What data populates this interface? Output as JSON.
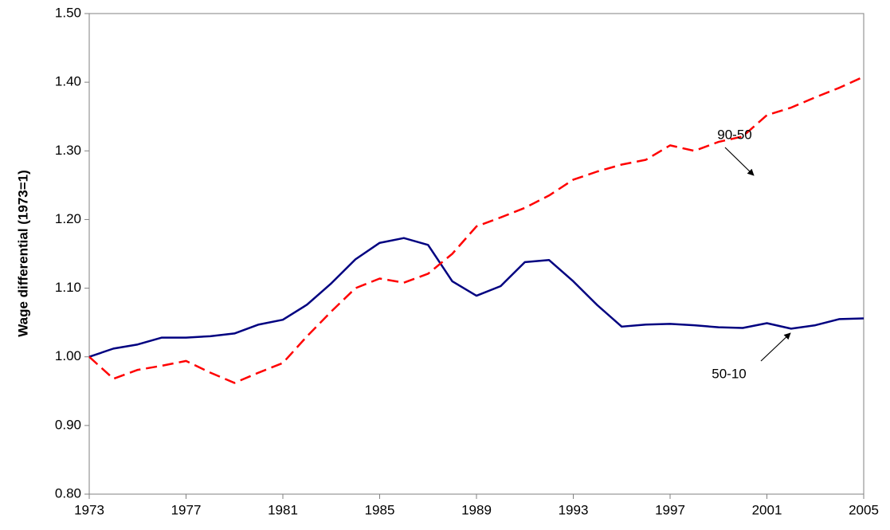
{
  "chart_data": {
    "type": "line",
    "y_label": "Wage differential (1973=1)",
    "x": [
      1973,
      1974,
      1975,
      1976,
      1977,
      1978,
      1979,
      1980,
      1981,
      1982,
      1983,
      1984,
      1985,
      1986,
      1987,
      1988,
      1989,
      1990,
      1991,
      1992,
      1993,
      1994,
      1995,
      1996,
      1997,
      1998,
      1999,
      2000,
      2001,
      2002,
      2003,
      2004,
      2005
    ],
    "series": [
      {
        "name": "50-10",
        "color": "#000080",
        "dashed": false,
        "values": [
          1.0,
          1.012,
          1.018,
          1.028,
          1.028,
          1.03,
          1.034,
          1.047,
          1.054,
          1.076,
          1.107,
          1.142,
          1.166,
          1.173,
          1.163,
          1.11,
          1.089,
          1.103,
          1.138,
          1.141,
          1.11,
          1.075,
          1.044,
          1.047,
          1.048,
          1.046,
          1.043,
          1.042,
          1.049,
          1.041,
          1.046,
          1.055,
          1.056
        ]
      },
      {
        "name": "90-50",
        "color": "#ff0000",
        "dashed": true,
        "values": [
          1.0,
          0.968,
          0.981,
          0.987,
          0.994,
          0.977,
          0.962,
          0.977,
          0.991,
          1.03,
          1.066,
          1.1,
          1.114,
          1.108,
          1.121,
          1.15,
          1.19,
          1.203,
          1.217,
          1.235,
          1.258,
          1.27,
          1.28,
          1.287,
          1.308,
          1.3,
          1.313,
          1.321,
          1.352,
          1.363,
          1.378,
          1.392,
          1.408
        ]
      }
    ],
    "xlim": [
      1973,
      2005
    ],
    "xticks": [
      1973,
      1977,
      1981,
      1985,
      1989,
      1993,
      1997,
      2001,
      2005
    ],
    "ylim": [
      0.8,
      1.5
    ],
    "yticks": [
      {
        "value": 0.8,
        "label": "0.80"
      },
      {
        "value": 0.9,
        "label": "0.90"
      },
      {
        "value": 1.0,
        "label": "1.00"
      },
      {
        "value": 1.1,
        "label": "1.10"
      },
      {
        "value": 1.2,
        "label": "1.20"
      },
      {
        "value": 1.3,
        "label": "1.30"
      },
      {
        "value": 1.4,
        "label": "1.40"
      },
      {
        "value": 1.5,
        "label": "1.50"
      }
    ],
    "grid": false
  }
}
